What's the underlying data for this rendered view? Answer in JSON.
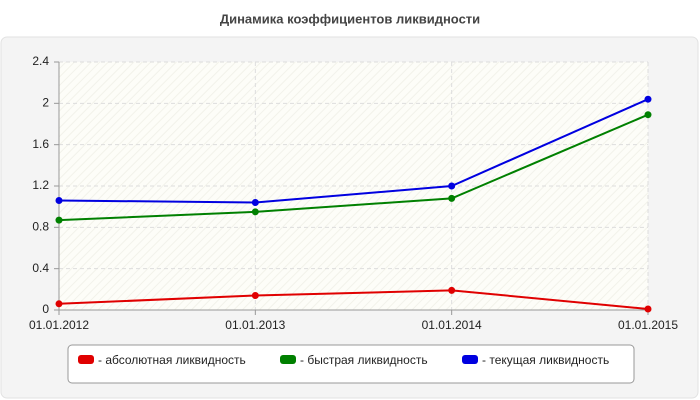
{
  "chart_data": {
    "type": "line",
    "title": "Динамика коэффициентов ликвидности",
    "categories": [
      "01.01.2012",
      "01.01.2013",
      "01.01.2014",
      "01.01.2015"
    ],
    "series": [
      {
        "name": "- абсолютная ликвидность",
        "color": "#e00000",
        "values": [
          0.06,
          0.14,
          0.19,
          0.01
        ]
      },
      {
        "name": "- быстрая ликвидность",
        "color": "#008000",
        "values": [
          0.87,
          0.95,
          1.08,
          1.89
        ]
      },
      {
        "name": "- текущая ликвидность",
        "color": "#0000e0",
        "values": [
          1.06,
          1.04,
          1.2,
          2.04
        ]
      }
    ],
    "ylim": [
      0,
      2.4
    ],
    "yticks": [
      0,
      0.4,
      0.8,
      1.2,
      1.6,
      2,
      2.4
    ],
    "grid": true,
    "legend": "bottom"
  }
}
